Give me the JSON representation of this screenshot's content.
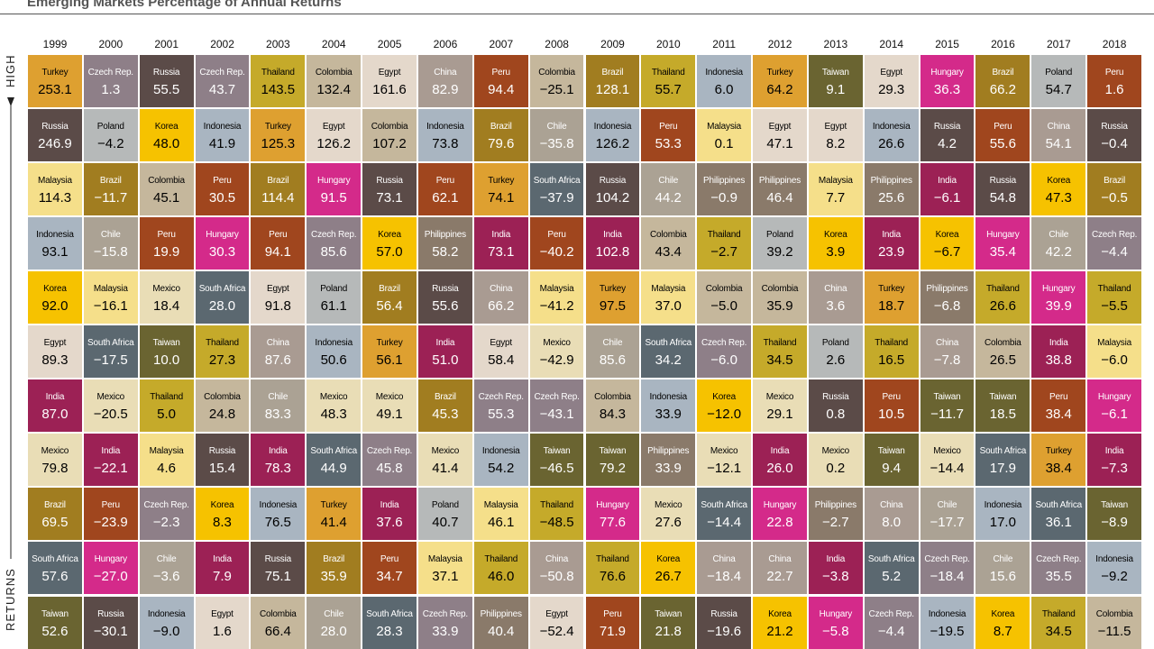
{
  "header": {
    "title": "Emerging Markets Percentage of Annual Returns"
  },
  "axis_labels": {
    "high": "HIGH",
    "returns": "RETURNS"
  },
  "table": {
    "columns": [
      1999,
      2000,
      2001,
      2002,
      2003,
      2004,
      2005,
      2006,
      2007,
      2008,
      2009,
      2010,
      2011,
      2012,
      2013,
      2014,
      2015,
      2016,
      2017,
      2018
    ],
    "rows": [
      [
        [
          "Turkey",
          "253.1"
        ],
        [
          "Czech Rep.",
          "1.3"
        ],
        [
          "Russia",
          "55.5"
        ],
        [
          "Czech Rep.",
          "43.7"
        ],
        [
          "Thailand",
          "143.5"
        ],
        [
          "Colombia",
          "132.4"
        ],
        [
          "Egypt",
          "161.6"
        ],
        [
          "China",
          "82.9"
        ],
        [
          "Peru",
          "94.4"
        ],
        [
          "Colombia",
          "−25.1"
        ],
        [
          "Brazil",
          "128.1"
        ],
        [
          "Thailand",
          "55.7"
        ],
        [
          "Indonesia",
          "6.0"
        ],
        [
          "Turkey",
          "64.2"
        ],
        [
          "Taiwan",
          "9.1"
        ],
        [
          "Egypt",
          "29.3"
        ],
        [
          "Hungary",
          "36.3"
        ],
        [
          "Brazil",
          "66.2"
        ],
        [
          "Poland",
          "54.7"
        ],
        [
          "Peru",
          "1.6"
        ]
      ],
      [
        [
          "Russia",
          "246.9"
        ],
        [
          "Poland",
          "−4.2"
        ],
        [
          "Korea",
          "48.0"
        ],
        [
          "Indonesia",
          "41.9"
        ],
        [
          "Turkey",
          "125.3"
        ],
        [
          "Egypt",
          "126.2"
        ],
        [
          "Colombia",
          "107.2"
        ],
        [
          "Indonesia",
          "73.8"
        ],
        [
          "Brazil",
          "79.6"
        ],
        [
          "Chile",
          "−35.8"
        ],
        [
          "Indonesia",
          "126.2"
        ],
        [
          "Peru",
          "53.3"
        ],
        [
          "Malaysia",
          "0.1"
        ],
        [
          "Egypt",
          "47.1"
        ],
        [
          "Egypt",
          "8.2"
        ],
        [
          "Indonesia",
          "26.6"
        ],
        [
          "Russia",
          "4.2"
        ],
        [
          "Peru",
          "55.6"
        ],
        [
          "China",
          "54.1"
        ],
        [
          "Russia",
          "−0.4"
        ]
      ],
      [
        [
          "Malaysia",
          "114.3"
        ],
        [
          "Brazil",
          "−11.7"
        ],
        [
          "Colombia",
          "45.1"
        ],
        [
          "Peru",
          "30.5"
        ],
        [
          "Brazil",
          "114.4"
        ],
        [
          "Hungary",
          "91.5"
        ],
        [
          "Russia",
          "73.1"
        ],
        [
          "Peru",
          "62.1"
        ],
        [
          "Turkey",
          "74.1"
        ],
        [
          "South Africa",
          "−37.9"
        ],
        [
          "Russia",
          "104.2"
        ],
        [
          "Chile",
          "44.2"
        ],
        [
          "Philippines",
          "−0.9"
        ],
        [
          "Philippines",
          "46.4"
        ],
        [
          "Malaysia",
          "7.7"
        ],
        [
          "Philippines",
          "25.6"
        ],
        [
          "India",
          "−6.1"
        ],
        [
          "Russia",
          "54.8"
        ],
        [
          "Korea",
          "47.3"
        ],
        [
          "Brazil",
          "−0.5"
        ]
      ],
      [
        [
          "Indonesia",
          "93.1"
        ],
        [
          "Chile",
          "−15.8"
        ],
        [
          "Peru",
          "19.9"
        ],
        [
          "Hungary",
          "30.3"
        ],
        [
          "Peru",
          "94.1"
        ],
        [
          "Czech Rep.",
          "85.6"
        ],
        [
          "Korea",
          "57.0"
        ],
        [
          "Philippines",
          "58.2"
        ],
        [
          "India",
          "73.1"
        ],
        [
          "Peru",
          "−40.2"
        ],
        [
          "India",
          "102.8"
        ],
        [
          "Colombia",
          "43.4"
        ],
        [
          "Thailand",
          "−2.7"
        ],
        [
          "Poland",
          "39.2"
        ],
        [
          "Korea",
          "3.9"
        ],
        [
          "India",
          "23.9"
        ],
        [
          "Korea",
          "−6.7"
        ],
        [
          "Hungary",
          "35.4"
        ],
        [
          "Chile",
          "42.2"
        ],
        [
          "Czech Rep.",
          "−4.4"
        ]
      ],
      [
        [
          "Korea",
          "92.0"
        ],
        [
          "Malaysia",
          "−16.1"
        ],
        [
          "Mexico",
          "18.4"
        ],
        [
          "South Africa",
          "28.0"
        ],
        [
          "Egypt",
          "91.8"
        ],
        [
          "Poland",
          "61.1"
        ],
        [
          "Brazil",
          "56.4"
        ],
        [
          "Russia",
          "55.6"
        ],
        [
          "China",
          "66.2"
        ],
        [
          "Malaysia",
          "−41.2"
        ],
        [
          "Turkey",
          "97.5"
        ],
        [
          "Malaysia",
          "37.0"
        ],
        [
          "Colombia",
          "−5.0"
        ],
        [
          "Colombia",
          "35.9"
        ],
        [
          "China",
          "3.6"
        ],
        [
          "Turkey",
          "18.7"
        ],
        [
          "Philippines",
          "−6.8"
        ],
        [
          "Thailand",
          "26.6"
        ],
        [
          "Hungary",
          "39.9"
        ],
        [
          "Thailand",
          "−5.5"
        ]
      ],
      [
        [
          "Egypt",
          "89.3"
        ],
        [
          "South Africa",
          "−17.5"
        ],
        [
          "Taiwan",
          "10.0"
        ],
        [
          "Thailand",
          "27.3"
        ],
        [
          "China",
          "87.6"
        ],
        [
          "Indonesia",
          "50.6"
        ],
        [
          "Turkey",
          "56.1"
        ],
        [
          "India",
          "51.0"
        ],
        [
          "Egypt",
          "58.4"
        ],
        [
          "Mexico",
          "−42.9"
        ],
        [
          "Chile",
          "85.6"
        ],
        [
          "South Africa",
          "34.2"
        ],
        [
          "Czech Rep.",
          "−6.0"
        ],
        [
          "Thailand",
          "34.5"
        ],
        [
          "Poland",
          "2.6"
        ],
        [
          "Thailand",
          "16.5"
        ],
        [
          "China",
          "−7.8"
        ],
        [
          "Colombia",
          "26.5"
        ],
        [
          "India",
          "38.8"
        ],
        [
          "Malaysia",
          "−6.0"
        ]
      ],
      [
        [
          "India",
          "87.0"
        ],
        [
          "Mexico",
          "−20.5"
        ],
        [
          "Thailand",
          "5.0"
        ],
        [
          "Colombia",
          "24.8"
        ],
        [
          "Chile",
          "83.3"
        ],
        [
          "Mexico",
          "48.3"
        ],
        [
          "Mexico",
          "49.1"
        ],
        [
          "Brazil",
          "45.3"
        ],
        [
          "Czech Rep.",
          "55.3"
        ],
        [
          "Czech Rep.",
          "−43.1"
        ],
        [
          "Colombia",
          "84.3"
        ],
        [
          "Indonesia",
          "33.9"
        ],
        [
          "Korea",
          "−12.0"
        ],
        [
          "Mexico",
          "29.1"
        ],
        [
          "Russia",
          "0.8"
        ],
        [
          "Peru",
          "10.5"
        ],
        [
          "Taiwan",
          "−11.7"
        ],
        [
          "Taiwan",
          "18.5"
        ],
        [
          "Peru",
          "38.4"
        ],
        [
          "Hungary",
          "−6.1"
        ]
      ],
      [
        [
          "Mexico",
          "79.8"
        ],
        [
          "India",
          "−22.1"
        ],
        [
          "Malaysia",
          "4.6"
        ],
        [
          "Russia",
          "15.4"
        ],
        [
          "India",
          "78.3"
        ],
        [
          "South Africa",
          "44.9"
        ],
        [
          "Czech Rep.",
          "45.8"
        ],
        [
          "Mexico",
          "41.4"
        ],
        [
          "Indonesia",
          "54.2"
        ],
        [
          "Taiwan",
          "−46.5"
        ],
        [
          "Taiwan",
          "79.2"
        ],
        [
          "Philippines",
          "33.9"
        ],
        [
          "Mexico",
          "−12.1"
        ],
        [
          "India",
          "26.0"
        ],
        [
          "Mexico",
          "0.2"
        ],
        [
          "Taiwan",
          "9.4"
        ],
        [
          "Mexico",
          "−14.4"
        ],
        [
          "South Africa",
          "17.9"
        ],
        [
          "Turkey",
          "38.4"
        ],
        [
          "India",
          "−7.3"
        ]
      ],
      [
        [
          "Brazil",
          "69.5"
        ],
        [
          "Peru",
          "−23.9"
        ],
        [
          "Czech Rep.",
          "−2.3"
        ],
        [
          "Korea",
          "8.3"
        ],
        [
          "Indonesia",
          "76.5"
        ],
        [
          "Turkey",
          "41.4"
        ],
        [
          "India",
          "37.6"
        ],
        [
          "Poland",
          "40.7"
        ],
        [
          "Malaysia",
          "46.1"
        ],
        [
          "Thailand",
          "−48.5"
        ],
        [
          "Hungary",
          "77.6"
        ],
        [
          "Mexico",
          "27.6"
        ],
        [
          "South Africa",
          "−14.4"
        ],
        [
          "Hungary",
          "22.8"
        ],
        [
          "Philippines",
          "−2.7"
        ],
        [
          "China",
          "8.0"
        ],
        [
          "Chile",
          "−17.7"
        ],
        [
          "Indonesia",
          "17.0"
        ],
        [
          "South Africa",
          "36.1"
        ],
        [
          "Taiwan",
          "−8.9"
        ]
      ],
      [
        [
          "South Africa",
          "57.6"
        ],
        [
          "Hungary",
          "−27.0"
        ],
        [
          "Chile",
          "−3.6"
        ],
        [
          "India",
          "7.9"
        ],
        [
          "Russia",
          "75.1"
        ],
        [
          "Brazil",
          "35.9"
        ],
        [
          "Peru",
          "34.7"
        ],
        [
          "Malaysia",
          "37.1"
        ],
        [
          "Thailand",
          "46.0"
        ],
        [
          "China",
          "−50.8"
        ],
        [
          "Thailand",
          "76.6"
        ],
        [
          "Korea",
          "26.7"
        ],
        [
          "China",
          "−18.4"
        ],
        [
          "China",
          "22.7"
        ],
        [
          "India",
          "−3.8"
        ],
        [
          "South Africa",
          "5.2"
        ],
        [
          "Czech Rep.",
          "−18.4"
        ],
        [
          "Chile",
          "15.6"
        ],
        [
          "Czech Rep.",
          "35.5"
        ],
        [
          "Indonesia",
          "−9.2"
        ]
      ],
      [
        [
          "Taiwan",
          "52.6"
        ],
        [
          "Russia",
          "−30.1"
        ],
        [
          "Indonesia",
          "−9.0"
        ],
        [
          "Egypt",
          "1.6"
        ],
        [
          "Colombia",
          "66.4"
        ],
        [
          "Chile",
          "28.0"
        ],
        [
          "South Africa",
          "28.3"
        ],
        [
          "Czech Rep.",
          "33.9"
        ],
        [
          "Philippines",
          "40.4"
        ],
        [
          "Egypt",
          "−52.4"
        ],
        [
          "Peru",
          "71.9"
        ],
        [
          "Taiwan",
          "21.8"
        ],
        [
          "Russia",
          "−19.6"
        ],
        [
          "Korea",
          "21.2"
        ],
        [
          "Hungary",
          "−5.8"
        ],
        [
          "Czech Rep.",
          "−4.4"
        ],
        [
          "Indonesia",
          "−19.5"
        ],
        [
          "Korea",
          "8.7"
        ],
        [
          "Thailand",
          "34.5"
        ],
        [
          "Colombia",
          "−11.5"
        ]
      ]
    ]
  },
  "colors": {
    "Turkey": [
      "#dea030",
      "#000"
    ],
    "Czech Rep.": [
      "#8e7f88",
      "#fff"
    ],
    "Russia": [
      "#5b4b48",
      "#fff"
    ],
    "Thailand": [
      "#c5aa2a",
      "#000"
    ],
    "Colombia": [
      "#c5b79c",
      "#000"
    ],
    "Egypt": [
      "#e4d8cb",
      "#000"
    ],
    "China": [
      "#a99b92",
      "#fff"
    ],
    "Peru": [
      "#a0461e",
      "#fff"
    ],
    "Brazil": [
      "#a17d20",
      "#fff"
    ],
    "Indonesia": [
      "#a9b5c1",
      "#000"
    ],
    "Taiwan": [
      "#6a6431",
      "#fff"
    ],
    "Hungary": [
      "#d42a8a",
      "#fff"
    ],
    "Poland": [
      "#b6b9b9",
      "#000"
    ],
    "Korea": [
      "#f6c200",
      "#000"
    ],
    "Malaysia": [
      "#f5df8a",
      "#000"
    ],
    "Chile": [
      "#aba294",
      "#fff"
    ],
    "India": [
      "#9c2155",
      "#fff"
    ],
    "South Africa": [
      "#5b6870",
      "#fff"
    ],
    "Mexico": [
      "#e9ddb6",
      "#000"
    ],
    "Philippines": [
      "#8a7a6a",
      "#fff"
    ]
  }
}
